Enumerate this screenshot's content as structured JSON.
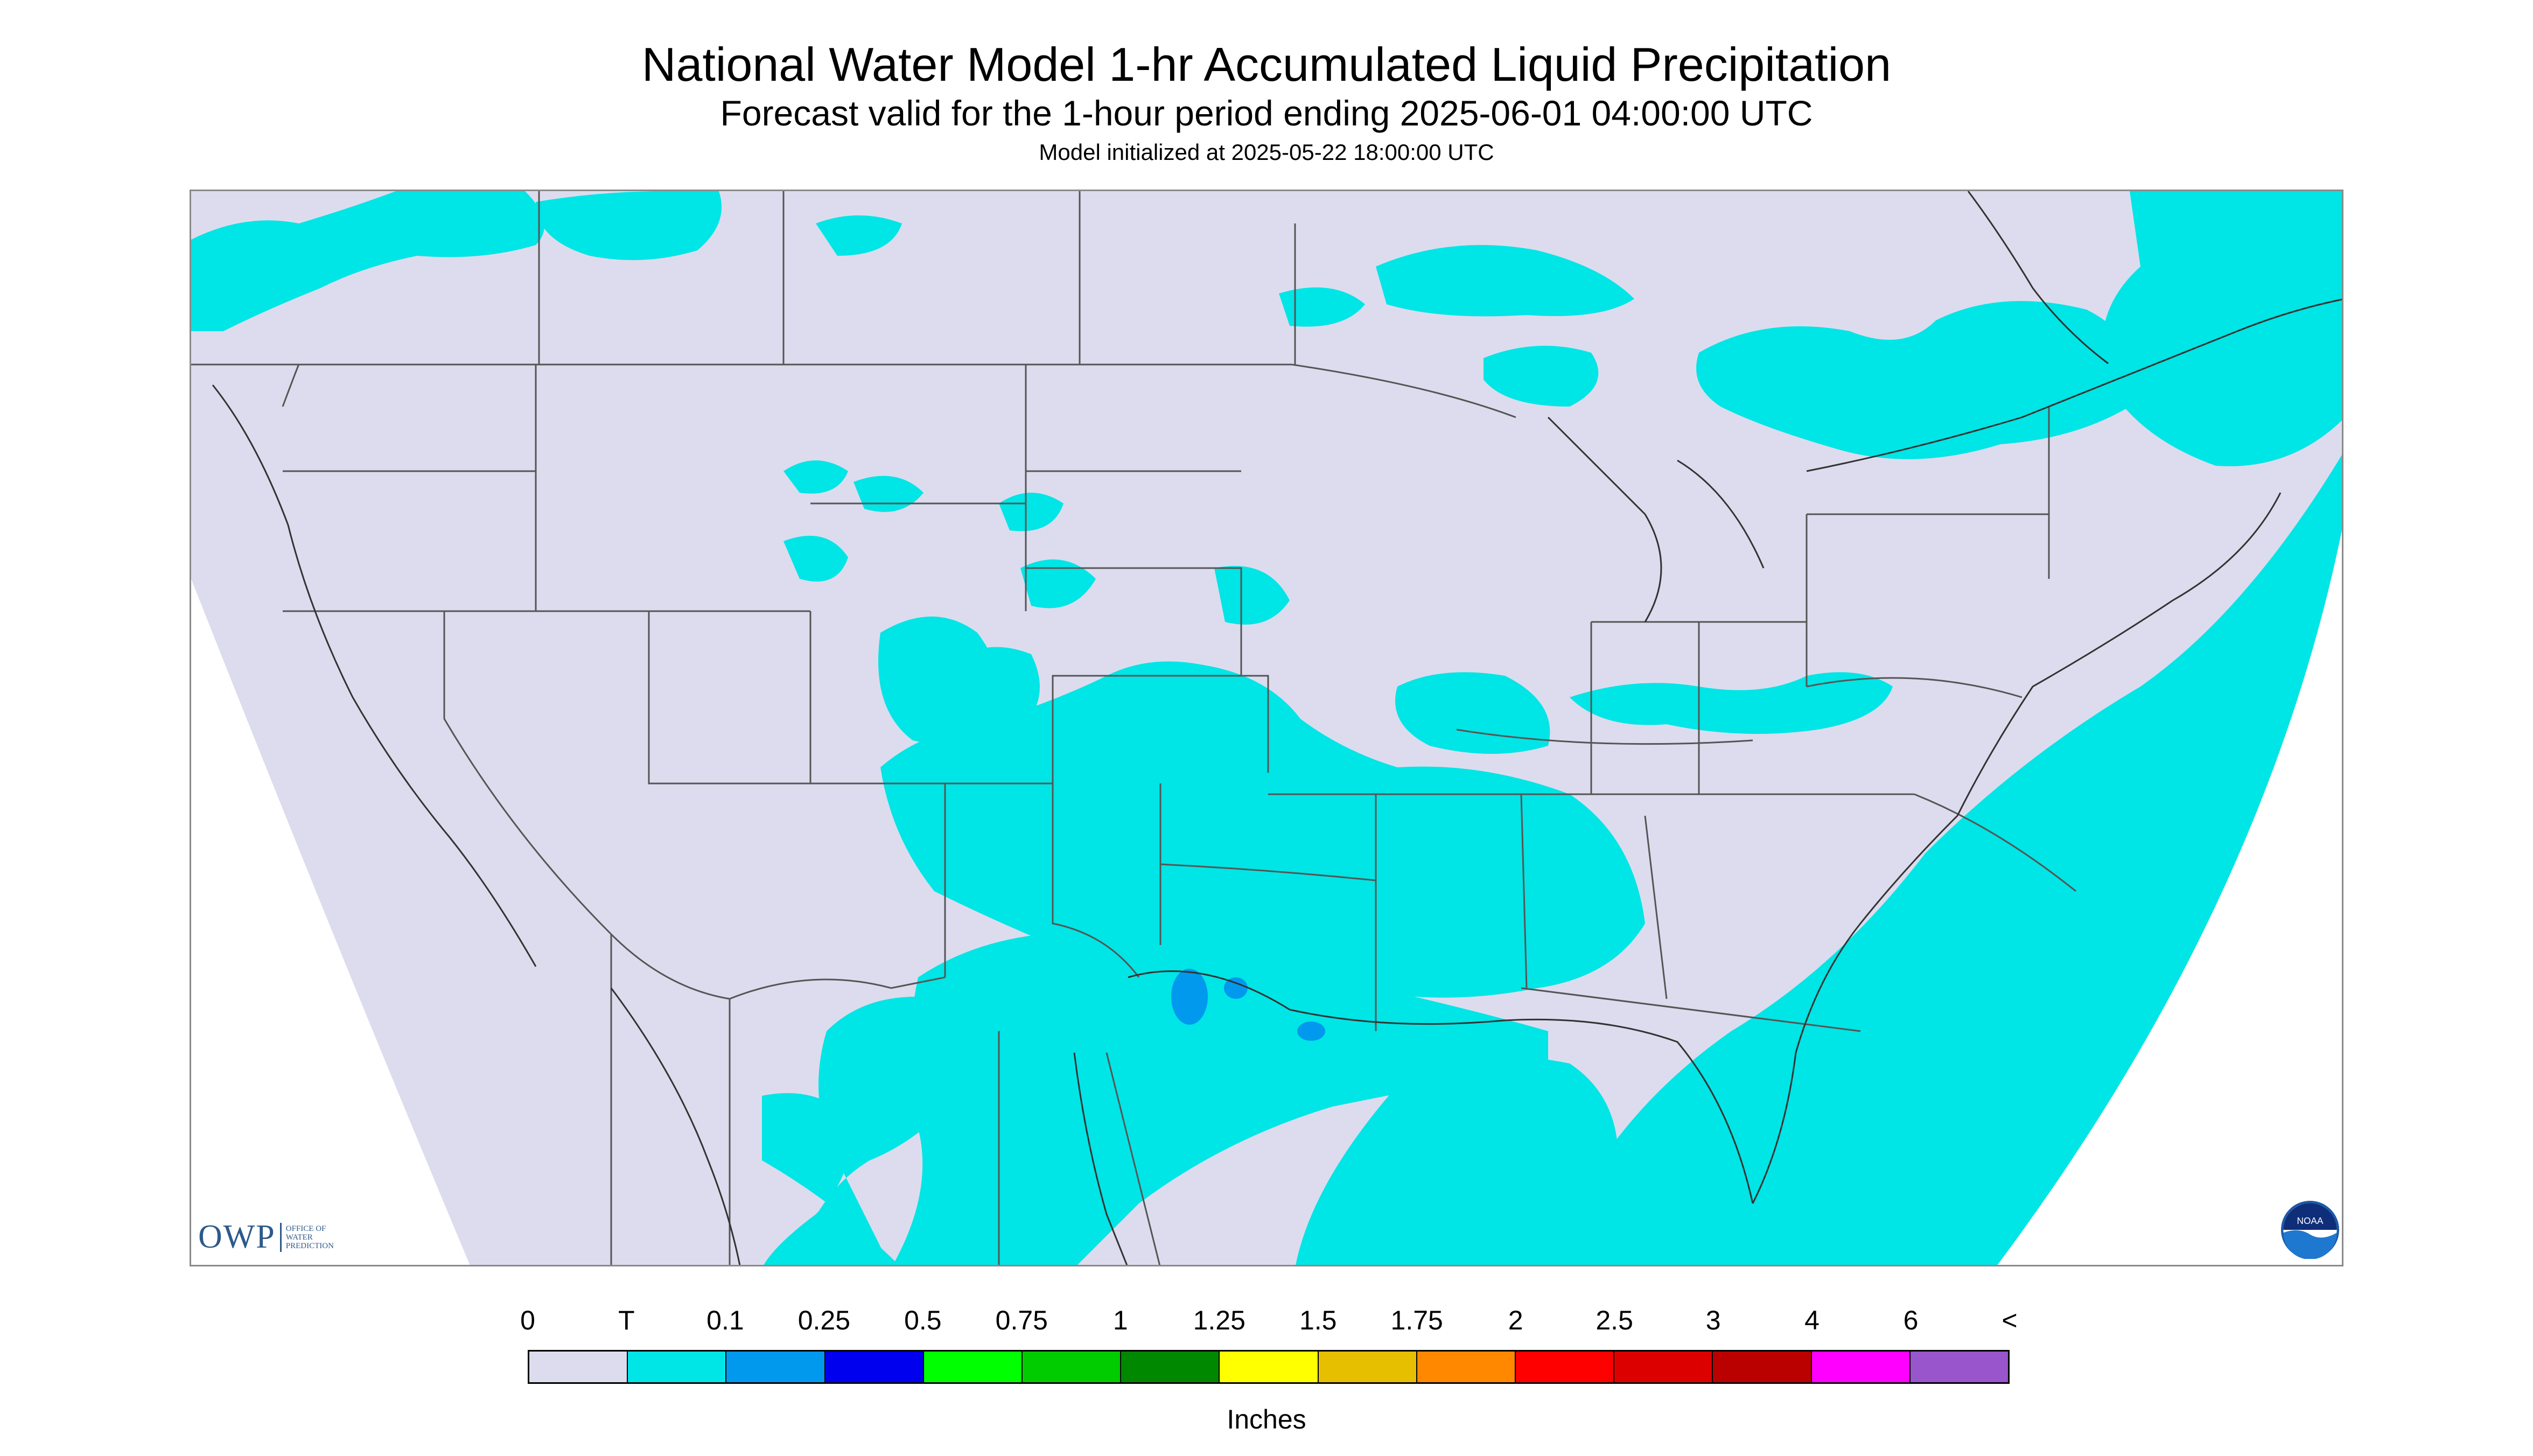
{
  "header": {
    "title": "National Water Model 1-hr Accumulated Liquid Precipitation",
    "subtitle": "Forecast valid for the 1-hour period ending 2025-06-01 04:00:00 UTC",
    "init": "Model initialized at 2025-05-22 18:00:00 UTC"
  },
  "logos": {
    "owp_main": "OWP",
    "owp_line1": "OFFICE OF",
    "owp_line2": "WATER",
    "owp_line3": "PREDICTION",
    "noaa": "NOAA"
  },
  "legend": {
    "units": "Inches",
    "labels": [
      "0",
      "T",
      "0.1",
      "0.25",
      "0.5",
      "0.75",
      "1",
      "1.25",
      "1.5",
      "1.75",
      "2",
      "2.5",
      "3",
      "4",
      "6",
      "<"
    ],
    "colors": [
      "#dcdcee",
      "#00e5e5",
      "#0099ee",
      "#0000ee",
      "#00ff00",
      "#00cc00",
      "#008800",
      "#ffff00",
      "#e5bf00",
      "#ff8800",
      "#ff0000",
      "#dd0000",
      "#bb0000",
      "#ff00ff",
      "#9955cc"
    ]
  },
  "colors": {
    "no_precip": "#dcdcee",
    "trace": "#00e5e5",
    "light": "#0099ee",
    "outside_domain": "#ffffff",
    "boundaries": "#555555"
  }
}
